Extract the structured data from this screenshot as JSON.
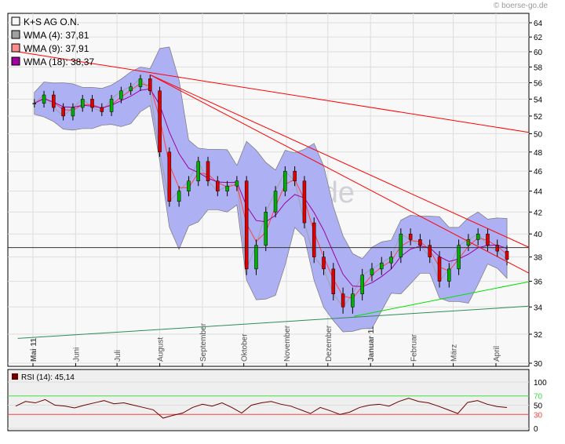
{
  "brand": "© boerse-go.de",
  "watermark": "boerse-go.de",
  "chart_data": [
    {
      "type": "candlestick",
      "legend": [
        {
          "label": "K+S AG O.N.",
          "color": "#f8f8f8"
        },
        {
          "label": "WMA (4): 37,81",
          "color": "#a0a0a0"
        },
        {
          "label": "WMA (9): 37,91",
          "color": "#ff8c8c"
        },
        {
          "label": "WMA (18): 38,37",
          "color": "#a000a0"
        }
      ],
      "legend_placement": "top-left",
      "y_scale": "log",
      "ylim": [
        30,
        64
      ],
      "yticks": [
        30,
        32,
        34,
        36,
        38,
        40,
        42,
        44,
        46,
        48,
        50,
        52,
        54,
        56,
        58,
        60,
        62,
        64
      ],
      "xticks": [
        {
          "label": "Mai 11",
          "date": "2011-05-01",
          "bold": true
        },
        {
          "label": "Juni",
          "date": "2011-06-01"
        },
        {
          "label": "Juli",
          "date": "2011-07-01"
        },
        {
          "label": "August",
          "date": "2011-08-01"
        },
        {
          "label": "September",
          "date": "2011-09-01"
        },
        {
          "label": "Oktober",
          "date": "2011-10-01"
        },
        {
          "label": "November",
          "date": "2011-11-01"
        },
        {
          "label": "Dezember",
          "date": "2011-12-01"
        },
        {
          "label": "Januar 12",
          "date": "2012-01-01",
          "bold": true
        },
        {
          "label": "Februar",
          "date": "2012-02-01"
        },
        {
          "label": "März",
          "date": "2012-03-01"
        },
        {
          "label": "April",
          "date": "2012-04-01"
        }
      ],
      "grid": true,
      "start_date": "2011-05-02",
      "interval_days": 7,
      "closes": [
        53.5,
        54.5,
        53,
        52,
        53,
        54,
        53,
        52.5,
        54,
        55,
        55.5,
        56.5,
        55,
        48,
        43,
        44,
        45,
        47,
        45,
        44,
        44.5,
        45,
        37,
        39,
        42,
        44,
        46,
        45,
        41,
        38,
        37,
        35,
        34,
        35,
        36.5,
        37,
        37.5,
        38,
        40,
        39.5,
        39,
        38,
        36,
        37,
        39,
        39.5,
        40,
        39,
        38.5,
        37.8
      ],
      "horizontal_line": 38.8,
      "trend_lines": [
        {
          "color": "#ff0000",
          "from": [
            "2011-04-20",
            60
          ],
          "to": [
            "2012-05-01",
            50
          ]
        },
        {
          "color": "#ff0000",
          "from": [
            "2011-07-25",
            57
          ],
          "to": [
            "2012-05-01",
            38.5
          ]
        },
        {
          "color": "#ff0000",
          "from": [
            "2011-07-25",
            57
          ],
          "to": [
            "2012-05-01",
            36.3
          ]
        },
        {
          "color": "#00e000",
          "from": [
            "2011-12-20",
            33.3
          ],
          "to": [
            "2012-05-01",
            36.1
          ]
        },
        {
          "color": "#2e8b57",
          "from": [
            "2011-04-20",
            31.7
          ],
          "to": [
            "2012-05-01",
            34.1
          ]
        }
      ],
      "colors": {
        "band": "#aeb0f4",
        "up": "#00b000",
        "down": "#e00000",
        "wma4": "#a0a0a0",
        "wma9": "#ff4040",
        "wma18": "#a000a0"
      }
    },
    {
      "type": "line",
      "legend": [
        {
          "label": "RSI (14): 45,14",
          "color": "#6a0000"
        }
      ],
      "ylim": [
        0,
        110
      ],
      "yticks": [
        0,
        30,
        50,
        70,
        100
      ],
      "levels": [
        {
          "value": 70,
          "color": "#40e040"
        },
        {
          "value": 30,
          "color": "#ff4040"
        }
      ],
      "values": [
        48,
        58,
        55,
        62,
        50,
        48,
        44,
        50,
        55,
        60,
        53,
        55,
        50,
        45,
        40,
        22,
        28,
        33,
        45,
        52,
        48,
        55,
        45,
        33,
        50,
        55,
        58,
        52,
        48,
        40,
        32,
        45,
        38,
        30,
        35,
        45,
        50,
        52,
        48,
        58,
        65,
        58,
        55,
        48,
        40,
        32,
        56,
        60,
        52,
        47,
        45
      ]
    }
  ]
}
